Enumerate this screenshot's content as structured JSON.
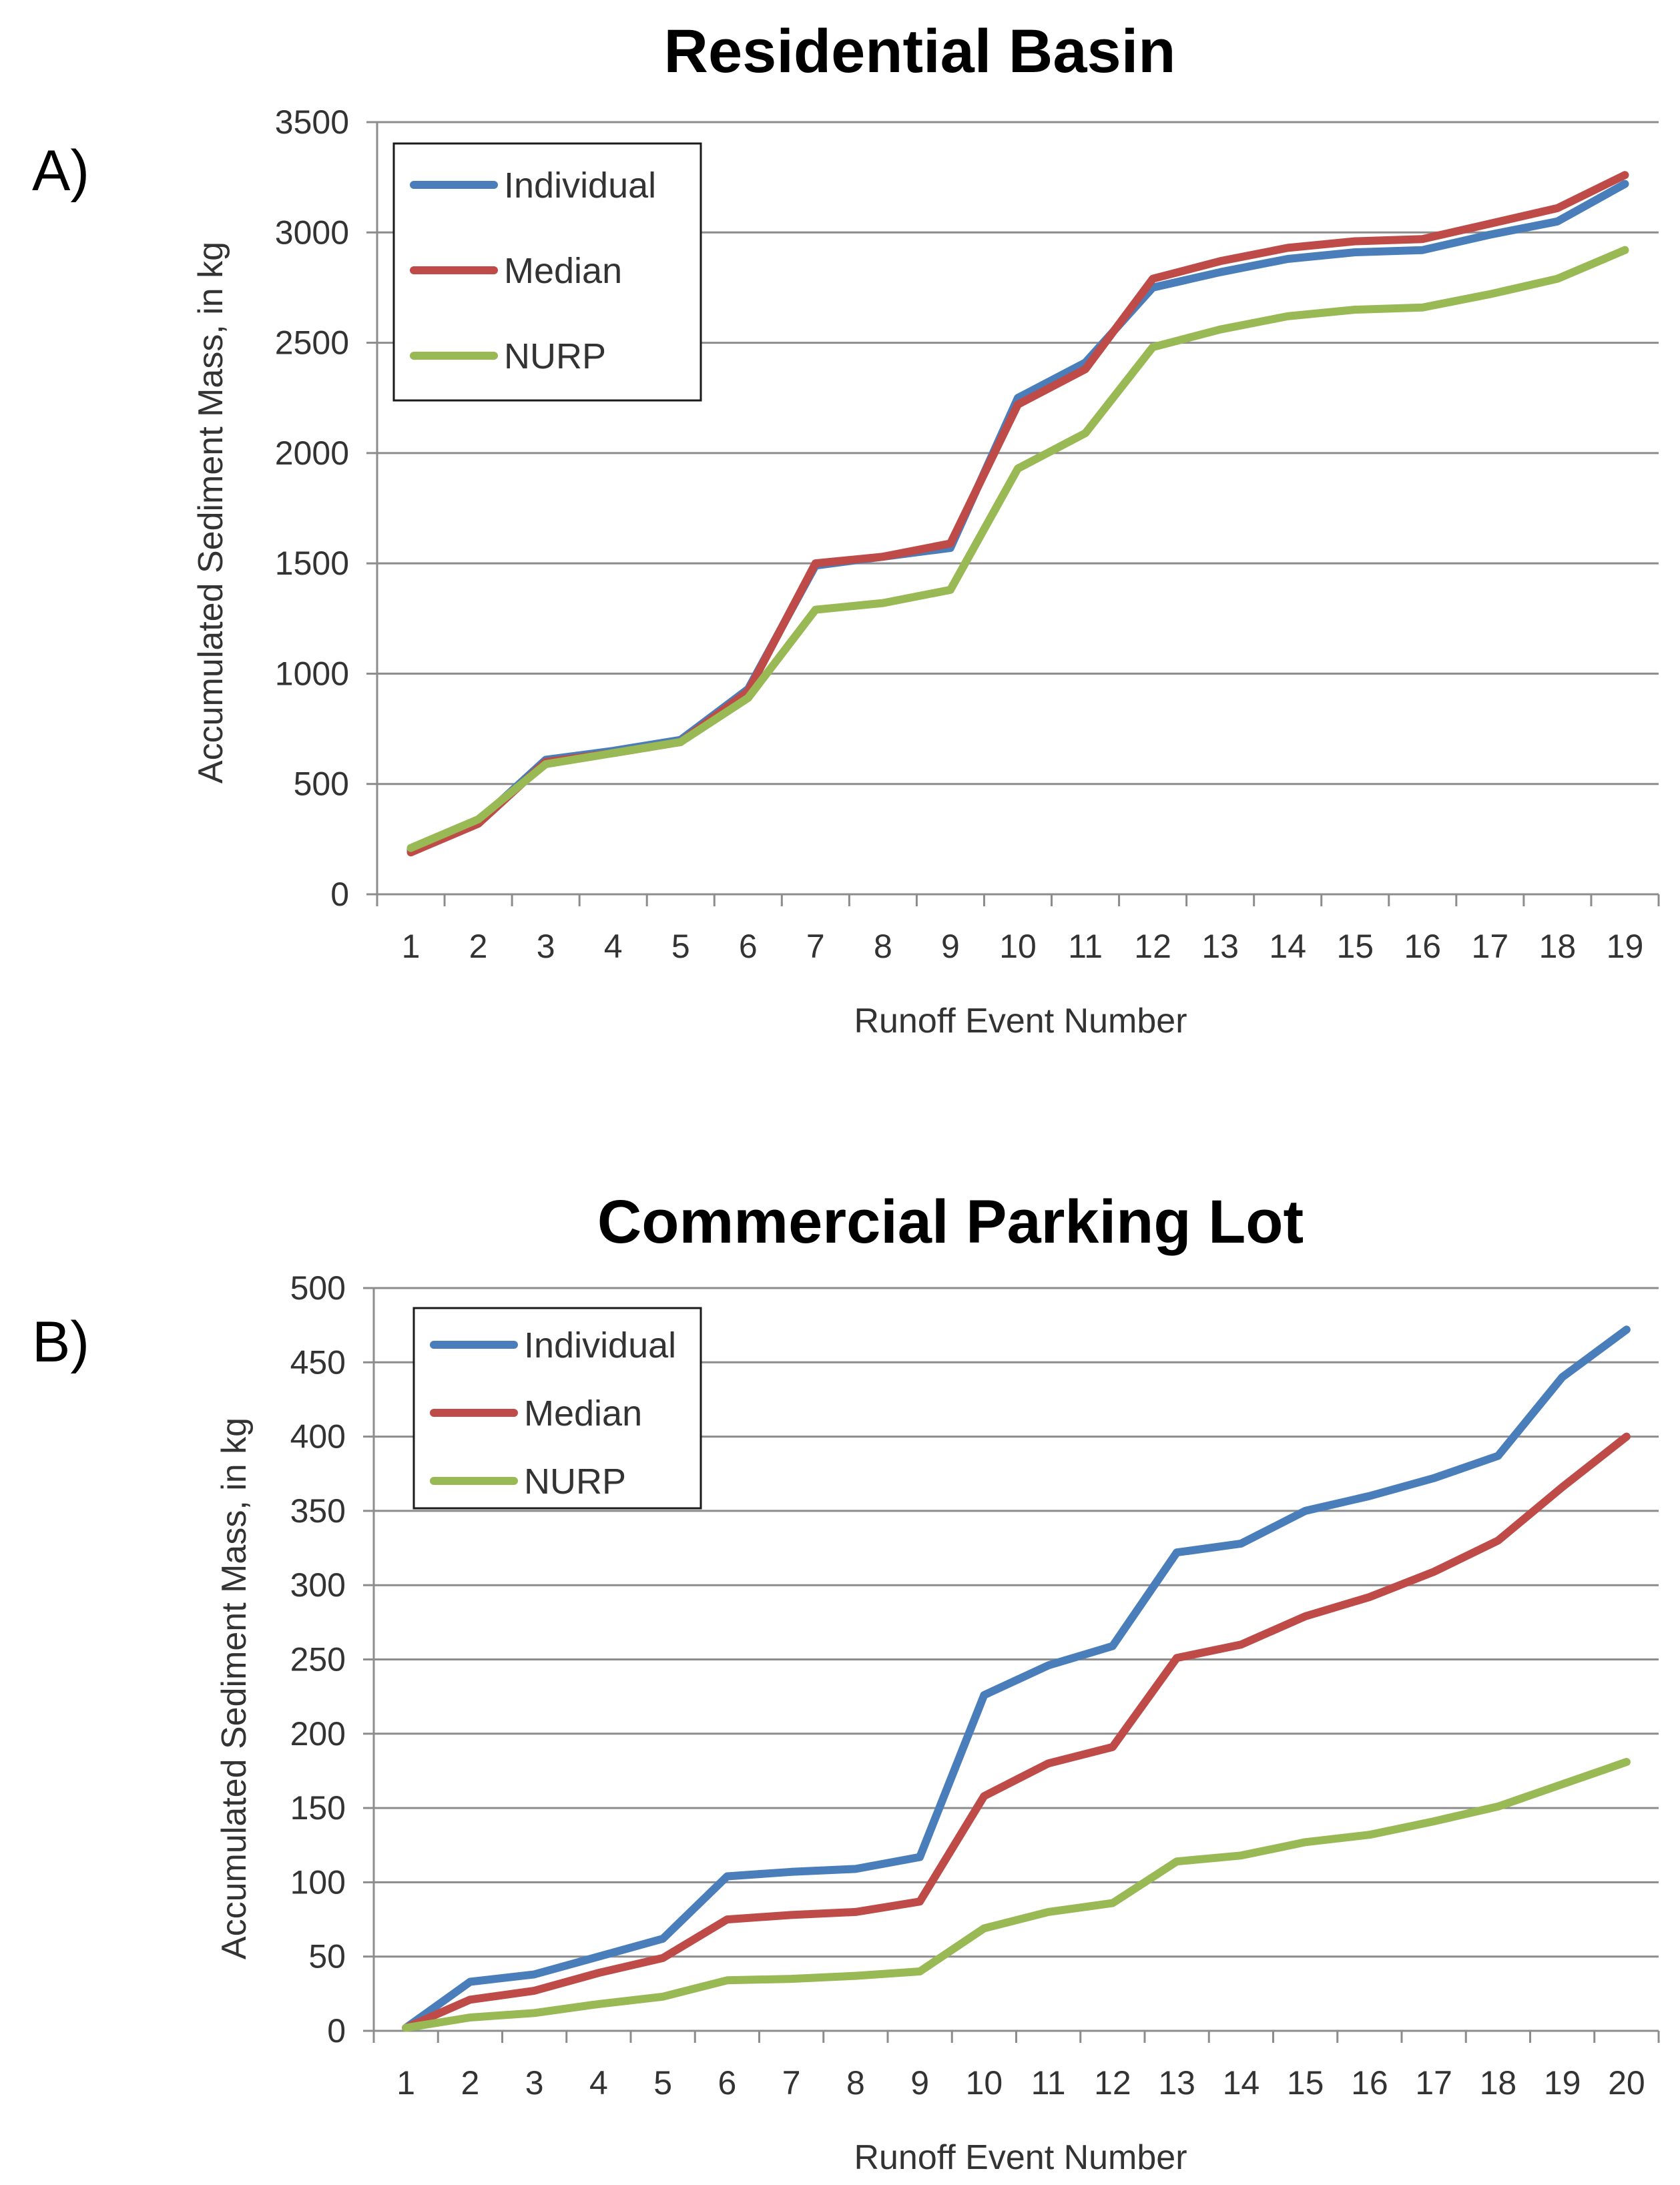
{
  "chart_data": [
    {
      "type": "line",
      "panel_label": "A)",
      "title": "Residential Basin",
      "xlabel": "Runoff Event Number",
      "ylabel": "Accumulated Sediment Mass, in kg",
      "categories": [
        "1",
        "2",
        "3",
        "4",
        "5",
        "6",
        "7",
        "8",
        "9",
        "10",
        "11",
        "12",
        "13",
        "14",
        "15",
        "16",
        "17",
        "18",
        "19"
      ],
      "ylim": [
        0,
        3500
      ],
      "yticks": [
        0,
        500,
        1000,
        1500,
        2000,
        2500,
        3000,
        3500
      ],
      "grid": true,
      "legend_position": "top-left",
      "series": [
        {
          "name": "Individual",
          "color": "#4a7ebb",
          "values": [
            200,
            330,
            610,
            650,
            700,
            930,
            1490,
            1530,
            1570,
            2250,
            2410,
            2750,
            2820,
            2880,
            2910,
            2920,
            2990,
            3050,
            3220
          ]
        },
        {
          "name": "Median",
          "color": "#be4b48",
          "values": [
            190,
            320,
            600,
            640,
            690,
            920,
            1500,
            1530,
            1590,
            2220,
            2380,
            2790,
            2870,
            2930,
            2960,
            2970,
            3040,
            3110,
            3260
          ]
        },
        {
          "name": "NURP",
          "color": "#98b954",
          "values": [
            210,
            340,
            590,
            640,
            690,
            890,
            1290,
            1320,
            1380,
            1930,
            2090,
            2480,
            2560,
            2620,
            2650,
            2660,
            2720,
            2790,
            2920
          ]
        }
      ]
    },
    {
      "type": "line",
      "panel_label": "B)",
      "title": "Commercial Parking Lot",
      "xlabel": "Runoff Event Number",
      "ylabel": "Accumulated Sediment Mass, in kg",
      "categories": [
        "1",
        "2",
        "3",
        "4",
        "5",
        "6",
        "7",
        "8",
        "9",
        "10",
        "11",
        "12",
        "13",
        "14",
        "15",
        "16",
        "17",
        "18",
        "19",
        "20"
      ],
      "ylim": [
        0,
        500
      ],
      "yticks": [
        0,
        50,
        100,
        150,
        200,
        250,
        300,
        350,
        400,
        450,
        500
      ],
      "grid": true,
      "legend_position": "top-left",
      "series": [
        {
          "name": "Individual",
          "color": "#4a7ebb",
          "values": [
            2,
            33,
            38,
            50,
            62,
            104,
            107,
            109,
            117,
            226,
            246,
            259,
            322,
            328,
            350,
            360,
            372,
            387,
            440,
            472
          ]
        },
        {
          "name": "Median",
          "color": "#be4b48",
          "values": [
            2,
            21,
            27,
            39,
            49,
            75,
            78,
            80,
            87,
            158,
            180,
            191,
            251,
            260,
            279,
            292,
            309,
            330,
            366,
            400
          ]
        },
        {
          "name": "NURP",
          "color": "#98b954",
          "values": [
            2,
            9,
            12,
            18,
            23,
            34,
            35,
            37,
            40,
            69,
            80,
            86,
            114,
            118,
            127,
            132,
            141,
            151,
            166,
            181
          ]
        }
      ]
    }
  ]
}
